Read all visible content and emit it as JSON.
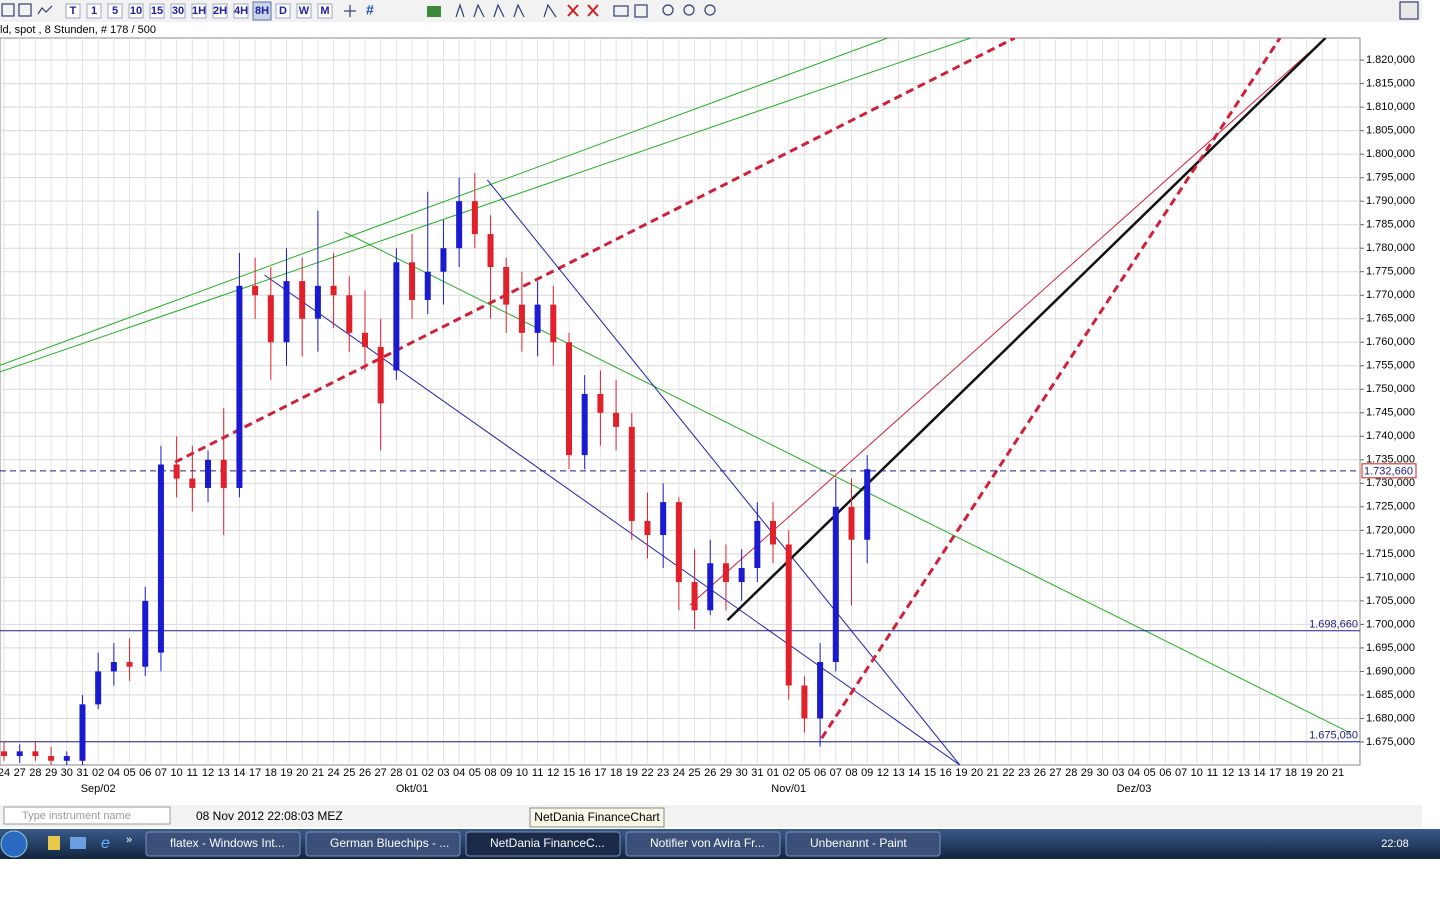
{
  "header": {
    "toolbar": [
      "T",
      "1",
      "5",
      "10",
      "15",
      "30",
      "1H",
      "2H",
      "4H",
      "8H",
      "D",
      "W",
      "M"
    ],
    "active": "8H",
    "info": "ld, spot , 8 Stunden, # 178 / 500"
  },
  "chart_data": {
    "type": "candlestick",
    "categories": [
      "24",
      "27",
      "28",
      "29",
      "30",
      "31",
      "02",
      "04",
      "05",
      "06",
      "07",
      "10",
      "11",
      "12",
      "13",
      "14",
      "17",
      "18",
      "19",
      "20",
      "21",
      "24",
      "25",
      "26",
      "27",
      "28",
      "01",
      "02",
      "03",
      "04",
      "05",
      "08",
      "09",
      "10",
      "11",
      "12",
      "15",
      "16",
      "17",
      "18",
      "19",
      "22",
      "23",
      "24",
      "25",
      "26",
      "29",
      "30",
      "31",
      "01",
      "02",
      "05",
      "06",
      "07",
      "08",
      "09",
      "12",
      "13",
      "14",
      "15",
      "16",
      "19",
      "20",
      "21",
      "22",
      "23",
      "26",
      "27",
      "28",
      "29",
      "30",
      "03",
      "04",
      "05",
      "06",
      "07",
      "10",
      "11",
      "12",
      "13",
      "14",
      "17",
      "18",
      "19",
      "20",
      "21"
    ],
    "month_labels": [
      null,
      null,
      null,
      null,
      null,
      null,
      "Sep/02",
      null,
      null,
      null,
      null,
      null,
      null,
      null,
      null,
      null,
      null,
      null,
      null,
      null,
      null,
      null,
      null,
      null,
      null,
      null,
      "Okt/01",
      null,
      null,
      null,
      null,
      null,
      null,
      null,
      null,
      null,
      null,
      null,
      null,
      null,
      null,
      null,
      null,
      null,
      null,
      null,
      null,
      null,
      null,
      null,
      "Nov/01",
      null,
      null,
      null,
      null,
      null,
      null,
      null,
      null,
      null,
      null,
      null,
      null,
      null,
      null,
      null,
      null,
      null,
      null,
      null,
      null,
      null,
      "Dez/03",
      null,
      null,
      null,
      null,
      null,
      null,
      null,
      null,
      null,
      null,
      null,
      null,
      null,
      null
    ],
    "candles": [
      [
        1.673,
        1.675,
        1.671,
        1.672
      ],
      [
        1.672,
        1.6745,
        1.6705,
        1.673
      ],
      [
        1.673,
        1.675,
        1.671,
        1.672
      ],
      [
        1.672,
        1.674,
        1.67,
        1.671
      ],
      [
        1.671,
        1.673,
        1.67,
        1.672
      ],
      [
        1.671,
        1.685,
        1.67,
        1.683
      ],
      [
        1.683,
        1.694,
        1.682,
        1.69
      ],
      [
        1.69,
        1.696,
        1.687,
        1.692
      ],
      [
        1.692,
        1.697,
        1.688,
        1.691
      ],
      [
        1.691,
        1.708,
        1.689,
        1.705
      ],
      [
        1.694,
        1.738,
        1.69,
        1.734
      ],
      [
        1.734,
        1.74,
        1.727,
        1.731
      ],
      [
        1.731,
        1.738,
        1.724,
        1.729
      ],
      [
        1.729,
        1.737,
        1.726,
        1.735
      ],
      [
        1.735,
        1.746,
        1.719,
        1.729
      ],
      [
        1.729,
        1.779,
        1.727,
        1.772
      ],
      [
        1.772,
        1.778,
        1.765,
        1.77
      ],
      [
        1.77,
        1.776,
        1.752,
        1.76
      ],
      [
        1.76,
        1.78,
        1.755,
        1.773
      ],
      [
        1.773,
        1.778,
        1.757,
        1.765
      ],
      [
        1.765,
        1.788,
        1.758,
        1.772
      ],
      [
        1.772,
        1.779,
        1.763,
        1.77
      ],
      [
        1.77,
        1.774,
        1.758,
        1.762
      ],
      [
        1.762,
        1.771,
        1.754,
        1.759
      ],
      [
        1.759,
        1.765,
        1.737,
        1.747
      ],
      [
        1.754,
        1.78,
        1.752,
        1.777
      ],
      [
        1.777,
        1.783,
        1.765,
        1.769
      ],
      [
        1.769,
        1.792,
        1.766,
        1.775
      ],
      [
        1.775,
        1.786,
        1.768,
        1.78
      ],
      [
        1.78,
        1.795,
        1.776,
        1.79
      ],
      [
        1.79,
        1.796,
        1.78,
        1.783
      ],
      [
        1.783,
        1.787,
        1.765,
        1.776
      ],
      [
        1.776,
        1.778,
        1.762,
        1.768
      ],
      [
        1.768,
        1.775,
        1.758,
        1.762
      ],
      [
        1.762,
        1.773,
        1.757,
        1.768
      ],
      [
        1.768,
        1.772,
        1.755,
        1.76
      ],
      [
        1.76,
        1.762,
        1.733,
        1.736
      ],
      [
        1.736,
        1.753,
        1.733,
        1.749
      ],
      [
        1.749,
        1.754,
        1.738,
        1.745
      ],
      [
        1.745,
        1.752,
        1.737,
        1.742
      ],
      [
        1.742,
        1.745,
        1.718,
        1.722
      ],
      [
        1.722,
        1.728,
        1.714,
        1.719
      ],
      [
        1.719,
        1.73,
        1.712,
        1.726
      ],
      [
        1.726,
        1.727,
        1.703,
        1.709
      ],
      [
        1.709,
        1.716,
        1.699,
        1.703
      ],
      [
        1.703,
        1.718,
        1.702,
        1.713
      ],
      [
        1.713,
        1.717,
        1.703,
        1.709
      ],
      [
        1.709,
        1.716,
        1.705,
        1.712
      ],
      [
        1.712,
        1.726,
        1.709,
        1.722
      ],
      [
        1.722,
        1.726,
        1.713,
        1.717
      ],
      [
        1.717,
        1.72,
        1.684,
        1.687
      ],
      [
        1.687,
        1.689,
        1.677,
        1.68
      ],
      [
        1.68,
        1.696,
        1.674,
        1.692
      ],
      [
        1.692,
        1.731,
        1.69,
        1.725
      ],
      [
        1.725,
        1.731,
        1.704,
        1.718
      ],
      [
        1.718,
        1.736,
        1.713,
        1.733
      ]
    ],
    "up_color": "#1a1ad0",
    "down_color": "#e0202a",
    "xlim": [
      -0.255,
      86.4
    ],
    "ylim": [
      1.6701,
      1.8247
    ],
    "yticks": [
      {
        "value": 1.675,
        "label": "1.675,000"
      },
      {
        "value": 1.68,
        "label": "1.680,000"
      },
      {
        "value": 1.685,
        "label": "1.685,000"
      },
      {
        "value": 1.69,
        "label": "1.690,000"
      },
      {
        "value": 1.695,
        "label": "1.695,000"
      },
      {
        "value": 1.7,
        "label": "1.700,000"
      },
      {
        "value": 1.705,
        "label": "1.705,000"
      },
      {
        "value": 1.71,
        "label": "1.710,000"
      },
      {
        "value": 1.715,
        "label": "1.715,000"
      },
      {
        "value": 1.72,
        "label": "1.720,000"
      },
      {
        "value": 1.725,
        "label": "1.725,000"
      },
      {
        "value": 1.73,
        "label": "1.730,000"
      },
      {
        "value": 1.735,
        "label": "1.735,000"
      },
      {
        "value": 1.74,
        "label": "1.740,000"
      },
      {
        "value": 1.745,
        "label": "1.745,000"
      },
      {
        "value": 1.75,
        "label": "1.750,000"
      },
      {
        "value": 1.755,
        "label": "1.755,000"
      },
      {
        "value": 1.76,
        "label": "1.760,000"
      },
      {
        "value": 1.765,
        "label": "1.765,000"
      },
      {
        "value": 1.77,
        "label": "1.770,000"
      },
      {
        "value": 1.775,
        "label": "1.775,000"
      },
      {
        "value": 1.78,
        "label": "1.780,000"
      },
      {
        "value": 1.785,
        "label": "1.785,000"
      },
      {
        "value": 1.79,
        "label": "1.790,000"
      },
      {
        "value": 1.795,
        "label": "1.795,000"
      },
      {
        "value": 1.8,
        "label": "1.800,000"
      },
      {
        "value": 1.805,
        "label": "1.805,000"
      },
      {
        "value": 1.81,
        "label": "1.810,000"
      },
      {
        "value": 1.815,
        "label": "1.815,000"
      },
      {
        "value": 1.82,
        "label": "1.820,000"
      }
    ],
    "grid": true,
    "hlines": [
      {
        "value": 1.73266,
        "label": "1.732,660",
        "color": "#202080",
        "dashed": true,
        "on_axis": true
      },
      {
        "value": 1.69866,
        "label": "1.698,660",
        "color": "#202080",
        "dashed": false,
        "on_axis": false
      },
      {
        "value": 1.67505,
        "label": "1.675,050",
        "color": "#202080",
        "dashed": false,
        "on_axis": false
      }
    ],
    "trendlines": [
      {
        "color": "#22b022",
        "width": 1,
        "dashed": false,
        "points": [
          [
            -0.255,
            1.7551
          ],
          [
            56.3,
            1.8247
          ]
        ]
      },
      {
        "color": "#22b022",
        "width": 1,
        "dashed": false,
        "points": [
          [
            -0.255,
            1.7537
          ],
          [
            61.6,
            1.8247
          ]
        ]
      },
      {
        "color": "#d0203a",
        "width": 3,
        "dashed": true,
        "points": [
          [
            10.9,
            1.7345
          ],
          [
            64.4,
            1.8247
          ]
        ]
      },
      {
        "color": "#22b022",
        "width": 1,
        "dashed": false,
        "points": [
          [
            21.7,
            1.7834
          ],
          [
            85.8,
            1.6769
          ]
        ]
      },
      {
        "color": "#2020b0",
        "width": 1,
        "dashed": false,
        "points": [
          [
            16.6,
            1.7743
          ],
          [
            60.9,
            1.6701
          ]
        ]
      },
      {
        "color": "#2020b0",
        "width": 1,
        "dashed": false,
        "points": [
          [
            30.8,
            1.7945
          ],
          [
            60.9,
            1.6701
          ]
        ]
      },
      {
        "color": "#d0203a",
        "width": 1,
        "dashed": false,
        "points": [
          [
            43.7,
            1.7041
          ],
          [
            84.2,
            1.8247
          ]
        ]
      },
      {
        "color": "#111111",
        "width": 2.5,
        "dashed": false,
        "points": [
          [
            46.1,
            1.7009
          ],
          [
            84.2,
            1.8247
          ]
        ]
      },
      {
        "color": "#d0203a",
        "width": 3,
        "dashed": true,
        "points": [
          [
            52.1,
            1.6758
          ],
          [
            81.3,
            1.8247
          ]
        ]
      }
    ]
  },
  "footer": {
    "search_placeholder": "Type instrument name",
    "timestamp": "08 Nov 2012 22:08:03 MEZ",
    "tooltip": "NetDania FinanceChart"
  },
  "taskbar": {
    "items": [
      "flatex - Windows Int...",
      "German Bluechips - ...",
      "NetDania FinanceC...",
      "Notifier von Avira Fr...",
      "Unbenannt - Paint"
    ],
    "active": "NetDania FinanceC...",
    "clock": "22:08"
  }
}
